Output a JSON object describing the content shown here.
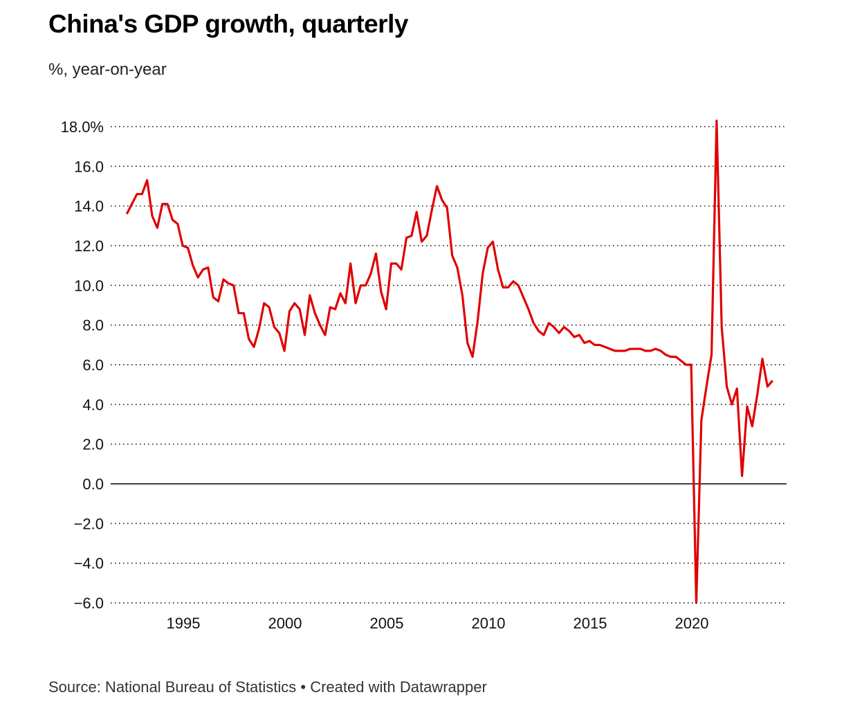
{
  "title": "China's GDP growth, quarterly",
  "subtitle": "%, year-on-year",
  "source": "Source: National Bureau of Statistics • Created with Datawrapper",
  "colors": {
    "line": "#e00000",
    "grid": "#222222",
    "zero": "#000000"
  },
  "chart_data": {
    "type": "line",
    "title": "China's GDP growth, quarterly",
    "ylabel": "%, year-on-year",
    "xlabel": "",
    "ylim": [
      -6,
      18
    ],
    "xlim": [
      1992,
      2024.5
    ],
    "grid": true,
    "yticks": [
      18,
      16,
      14,
      12,
      10,
      8,
      6,
      4,
      2,
      0,
      -2,
      -4,
      -6
    ],
    "ytick_labels": [
      "18.0%",
      "16.0",
      "14.0",
      "12.0",
      "10.0",
      "8.0",
      "6.0",
      "4.0",
      "2.0",
      "0.0",
      "−2.0",
      "−4.0",
      "−6.0"
    ],
    "xticks": [
      1995,
      2000,
      2005,
      2010,
      2015,
      2020
    ],
    "xtick_labels": [
      "1995",
      "2000",
      "2005",
      "2010",
      "2015",
      "2020"
    ],
    "start": "1992Q1",
    "series": [
      {
        "name": "GDP growth",
        "values": [
          13.6,
          14.1,
          14.6,
          14.6,
          15.3,
          13.5,
          12.9,
          14.1,
          14.1,
          13.3,
          13.1,
          12.0,
          11.9,
          11.0,
          10.4,
          10.8,
          10.9,
          9.4,
          9.2,
          10.3,
          10.1,
          10.0,
          8.6,
          8.6,
          7.3,
          6.9,
          7.8,
          9.1,
          8.9,
          7.9,
          7.6,
          6.7,
          8.7,
          9.1,
          8.8,
          7.5,
          9.5,
          8.6,
          8.0,
          7.5,
          8.9,
          8.8,
          9.6,
          9.1,
          11.1,
          9.1,
          10.0,
          10.0,
          10.6,
          11.6,
          9.7,
          8.8,
          11.1,
          11.1,
          10.8,
          12.4,
          12.5,
          13.7,
          12.2,
          12.5,
          13.8,
          15.0,
          14.3,
          13.9,
          11.5,
          10.9,
          9.5,
          7.1,
          6.4,
          8.2,
          10.6,
          11.9,
          12.2,
          10.8,
          9.9,
          9.9,
          10.2,
          10.0,
          9.4,
          8.8,
          8.1,
          7.7,
          7.5,
          8.1,
          7.9,
          7.6,
          7.9,
          7.7,
          7.4,
          7.5,
          7.1,
          7.2,
          7.0,
          7.0,
          6.9,
          6.8,
          6.7,
          6.7,
          6.7,
          6.8,
          6.8,
          6.8,
          6.7,
          6.7,
          6.8,
          6.7,
          6.5,
          6.4,
          6.4,
          6.2,
          6.0,
          6.0,
          -6.0,
          3.2,
          4.9,
          6.5,
          18.3,
          7.9,
          4.9,
          4.0,
          4.8,
          0.4,
          3.9,
          2.9,
          4.5,
          6.3,
          4.9,
          5.2
        ]
      }
    ]
  }
}
